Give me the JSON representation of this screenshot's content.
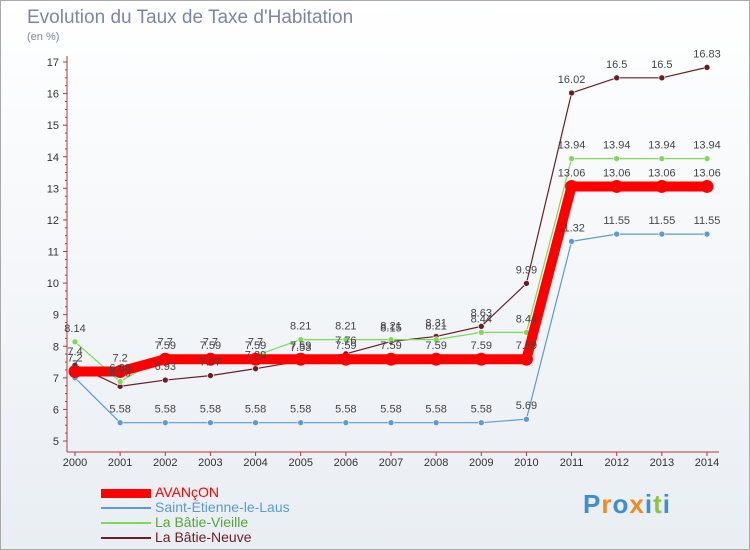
{
  "chart_data": {
    "type": "line",
    "title": "Evolution du Taux de Taxe d'Habitation",
    "unit": "(en %)",
    "x": [
      "2000",
      "2001",
      "2002",
      "2003",
      "2004",
      "2005",
      "2006",
      "2007",
      "2008",
      "2009",
      "2010",
      "2011",
      "2012",
      "2013",
      "2014"
    ],
    "ylim": [
      5,
      17
    ],
    "yticks": [
      5,
      6,
      7,
      8,
      9,
      10,
      11,
      12,
      13,
      14,
      15,
      16,
      17
    ],
    "grid": false,
    "legend_position": "bottom-left",
    "series": [
      {
        "name": "AVANçON",
        "color": "#ff0000",
        "values": [
          7.2,
          7.2,
          7.59,
          7.59,
          7.59,
          7.59,
          7.59,
          7.59,
          7.59,
          7.59,
          7.59,
          13.06,
          13.06,
          13.06,
          13.06
        ],
        "labels": [
          "7.2",
          "7.2",
          "7.59",
          "7.59",
          "7.59",
          "7.59",
          "7.59",
          "7.59",
          "7.59",
          "7.59",
          "7.59",
          "13.06",
          "13.06",
          "13.06",
          "13.06"
        ]
      },
      {
        "name": "Saint-Étienne-le-Laus",
        "color": "#5a9bd4",
        "values": [
          7.0,
          5.58,
          5.58,
          5.58,
          5.58,
          5.58,
          5.58,
          5.58,
          5.58,
          5.58,
          5.69,
          11.32,
          11.55,
          11.55,
          11.55
        ],
        "labels": [
          "7",
          "5.58",
          "5.58",
          "5.58",
          "5.58",
          "5.58",
          "5.58",
          "5.58",
          "5.58",
          "5.58",
          "5.69",
          "11.32",
          "11.55",
          "11.55",
          "11.55"
        ]
      },
      {
        "name": "La Bâtie-Vieille",
        "color": "#7ed957",
        "values": [
          8.14,
          6.88,
          7.7,
          7.7,
          7.7,
          8.21,
          8.21,
          8.21,
          8.21,
          8.44,
          8.44,
          13.94,
          13.94,
          13.94,
          13.94
        ],
        "labels": [
          "8.14",
          "6.88",
          "7.7",
          "7.7",
          "7.7",
          "8.21",
          "8.21",
          "8.21",
          "8.21",
          "8.44",
          "8.44",
          "13.94",
          "13.94",
          "13.94",
          "13.94"
        ]
      },
      {
        "name": "La Bâtie-Neuve",
        "color": "#6b1e26",
        "values": [
          7.4,
          6.73,
          6.93,
          7.07,
          7.29,
          7.53,
          7.76,
          8.15,
          8.31,
          8.63,
          9.99,
          16.02,
          16.5,
          16.5,
          16.83
        ],
        "labels": [
          "7.4",
          "6.73",
          "6.93",
          "7.07",
          "7.29",
          "7.53",
          "7.76",
          "8.15",
          "8.31",
          "8.63",
          "9.99",
          "16.02",
          "16.5",
          "16.5",
          "16.83"
        ]
      }
    ]
  },
  "brand": {
    "text": "Proxiti",
    "letter_colors": [
      "#3d8fd1",
      "#f08a1c",
      "#3d8fd1",
      "#f08a1c",
      "#3d8fd1",
      "#8cc63f",
      "#3d8fd1"
    ]
  }
}
